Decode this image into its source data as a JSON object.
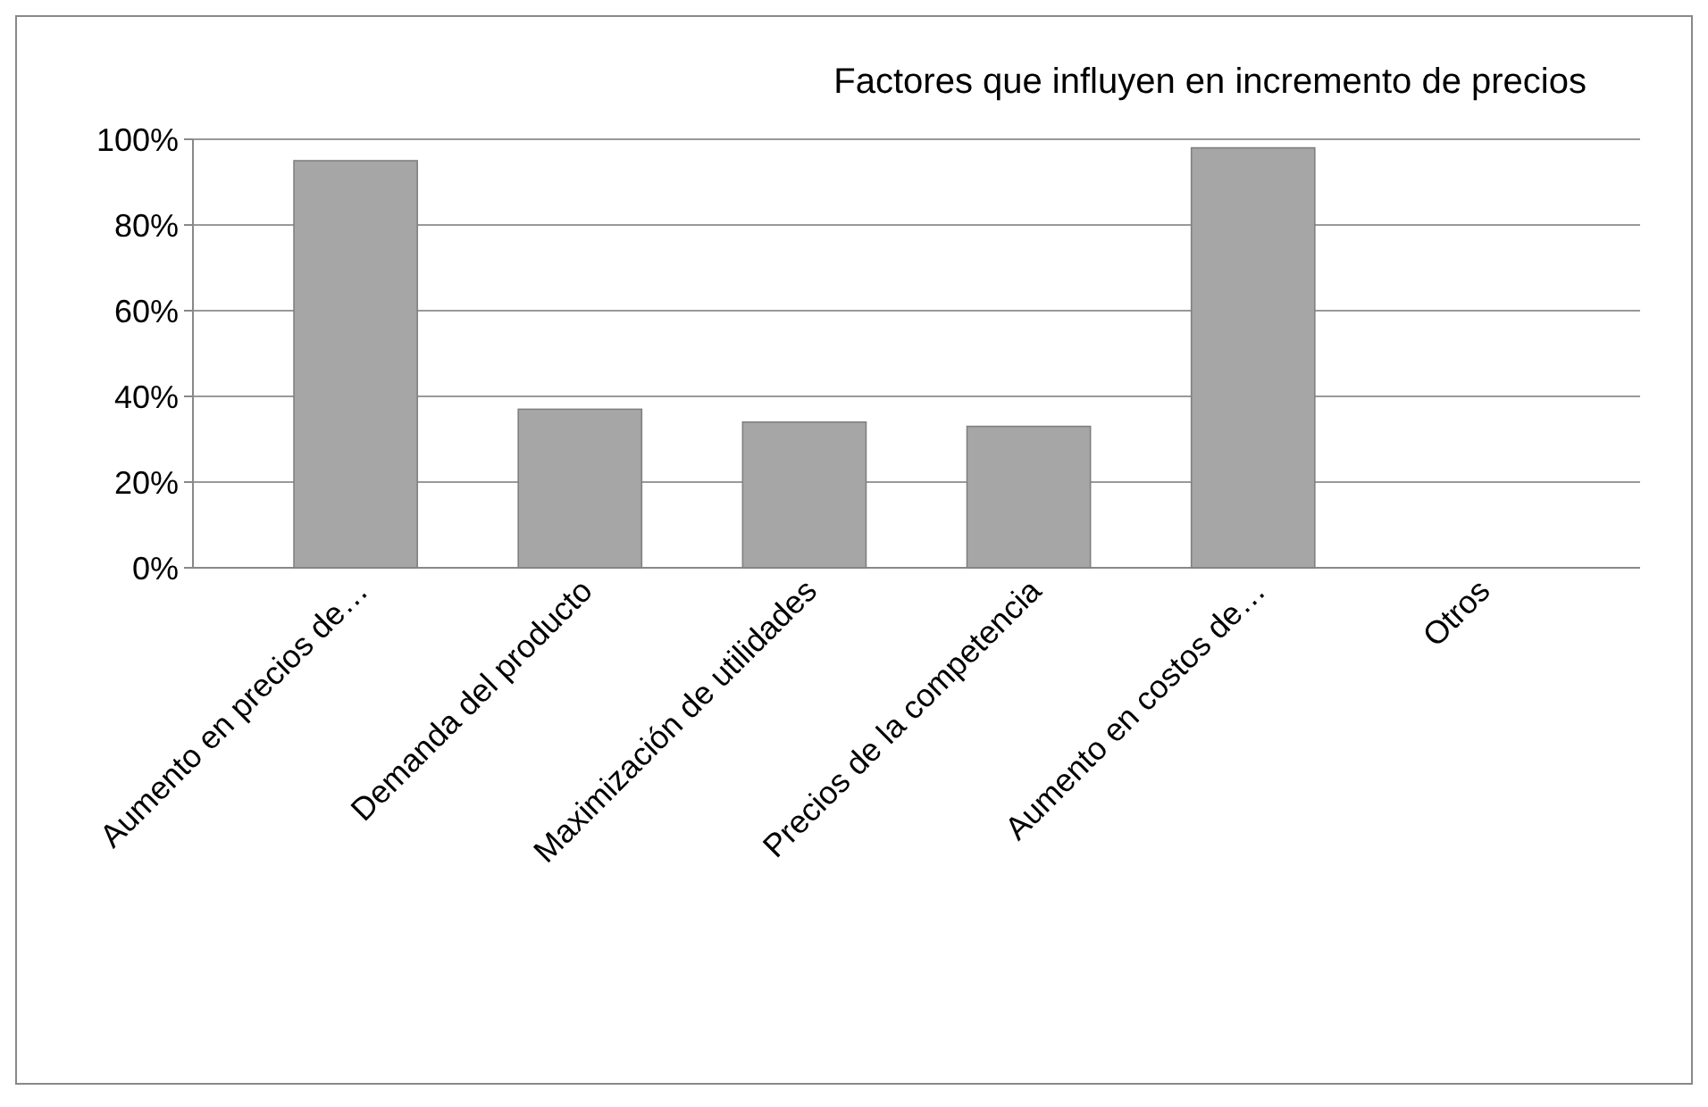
{
  "chart_data": {
    "type": "bar",
    "title": "Factores que influyen en incremento de precios",
    "categories": [
      "Aumento en precios de…",
      "Demanda del producto",
      "Maximización de utilidades",
      "Precios de la competencia",
      "Aumento en costos de…",
      "Otros"
    ],
    "values": [
      95,
      37,
      34,
      33,
      98,
      0
    ],
    "color": "#a6a6a6",
    "ylim": [
      0,
      100
    ],
    "yticks": [
      {
        "value": 0,
        "label": "0%"
      },
      {
        "value": 20,
        "label": "20%"
      },
      {
        "value": 40,
        "label": "40%"
      },
      {
        "value": 60,
        "label": "60%"
      },
      {
        "value": 80,
        "label": "80%"
      },
      {
        "value": 100,
        "label": "100%"
      }
    ],
    "grid": "y"
  }
}
